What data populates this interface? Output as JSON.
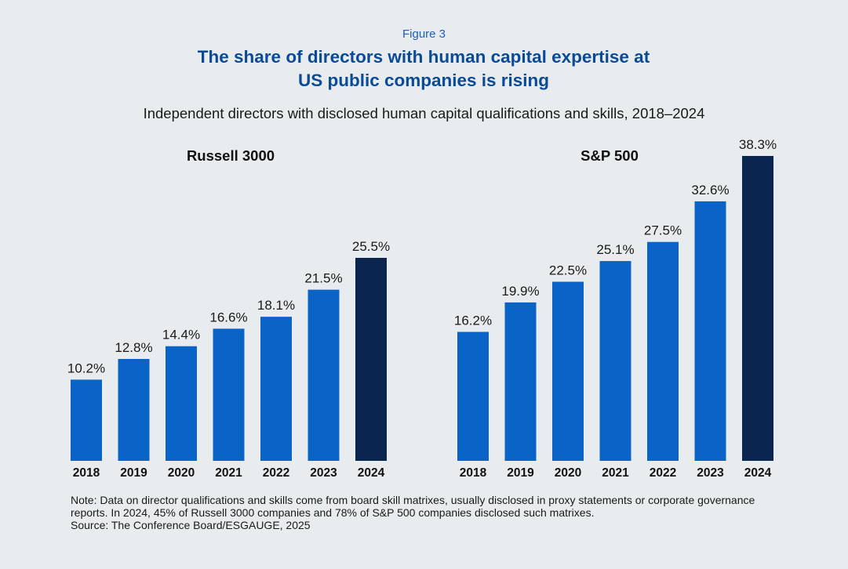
{
  "figure_label": "Figure 3",
  "title_line1": "The share of directors with human capital expertise at",
  "title_line2": "US public companies is rising",
  "subtitle": "Independent directors with disclosed human capital qualifications and skills, 2018–2024",
  "note": "Note: Data on director qualifications and skills come from board skill matrixes, usually disclosed in proxy statements or corporate governance reports. In 2024, 45% of Russell 3000 companies and 78% of S&P 500 companies disclosed such matrixes.",
  "source": "Source: The Conference Board/ESGAUGE, 2025",
  "colors": {
    "bar": "#0a64c8",
    "highlight": "#0a2550",
    "background": "#e8ecef"
  },
  "chart_data": [
    {
      "type": "bar",
      "title": "Russell 3000",
      "categories": [
        "2018",
        "2019",
        "2020",
        "2021",
        "2022",
        "2023",
        "2024"
      ],
      "values": [
        10.2,
        12.8,
        14.4,
        16.6,
        18.1,
        21.5,
        25.5
      ],
      "data_labels": [
        "10.2%",
        "12.8%",
        "14.4%",
        "16.6%",
        "18.1%",
        "21.5%",
        "25.5%"
      ],
      "highlight_category": "2024",
      "ylim": [
        0,
        40
      ],
      "grid": false
    },
    {
      "type": "bar",
      "title": "S&P 500",
      "categories": [
        "2018",
        "2019",
        "2020",
        "2021",
        "2022",
        "2023",
        "2024"
      ],
      "values": [
        16.2,
        19.9,
        22.5,
        25.1,
        27.5,
        32.6,
        38.3
      ],
      "data_labels": [
        "16.2%",
        "19.9%",
        "22.5%",
        "25.1%",
        "27.5%",
        "32.6%",
        "38.3%"
      ],
      "highlight_category": "2024",
      "ylim": [
        0,
        40
      ],
      "grid": false
    }
  ]
}
